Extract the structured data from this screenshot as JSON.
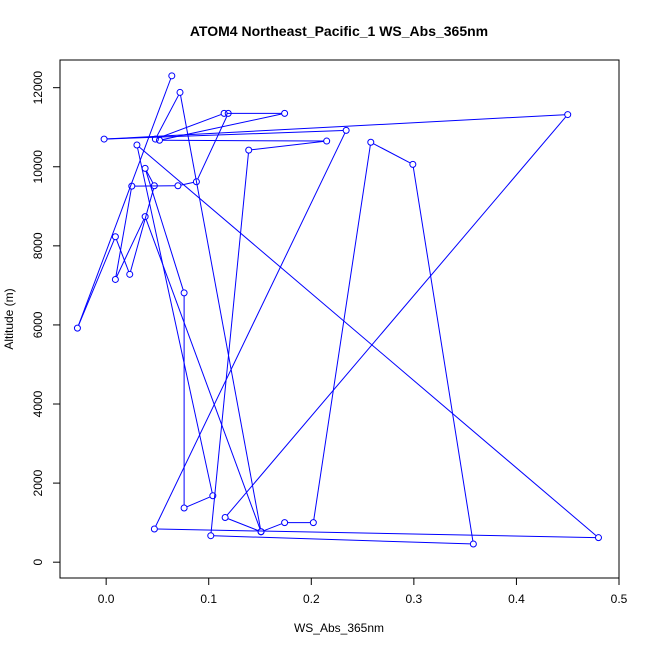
{
  "chart_data": {
    "type": "line",
    "title": "ATOM4 Northeast_Pacific_1 WS_Abs_365nm",
    "xlabel": "WS_Abs_365nm",
    "ylabel": "Altitude (m)",
    "xlim": [
      -0.045,
      0.5
    ],
    "ylim": [
      -400,
      12700
    ],
    "x_ticks": [
      0.0,
      0.1,
      0.2,
      0.3,
      0.4,
      0.5
    ],
    "x_tick_labels": [
      "0.0",
      "0.1",
      "0.2",
      "0.3",
      "0.4",
      "0.5"
    ],
    "y_ticks": [
      0,
      2000,
      4000,
      6000,
      8000,
      10000,
      12000
    ],
    "y_tick_labels": [
      "0",
      "2000",
      "4000",
      "6000",
      "8000",
      "10000",
      "12000"
    ],
    "grid": false,
    "series": [
      {
        "color": "#0000ff",
        "marker": "open-circle",
        "points": [
          {
            "x": 0.064,
            "y": 12300
          },
          {
            "x": -0.028,
            "y": 5920
          },
          {
            "x": 0.009,
            "y": 8230
          },
          {
            "x": 0.023,
            "y": 7280
          },
          {
            "x": 0.047,
            "y": 9520
          },
          {
            "x": 0.038,
            "y": 9960
          },
          {
            "x": 0.076,
            "y": 6810
          },
          {
            "x": 0.076,
            "y": 1370
          },
          {
            "x": 0.104,
            "y": 1680
          },
          {
            "x": 0.03,
            "y": 10550
          },
          {
            "x": 0.48,
            "y": 620
          },
          {
            "x": 0.047,
            "y": 840
          },
          {
            "x": 0.234,
            "y": 10920
          },
          {
            "x": -0.002,
            "y": 10700
          },
          {
            "x": 0.45,
            "y": 11320
          },
          {
            "x": 0.116,
            "y": 1130
          },
          {
            "x": 0.151,
            "y": 770
          },
          {
            "x": 0.174,
            "y": 1000
          },
          {
            "x": 0.202,
            "y": 1000
          },
          {
            "x": 0.258,
            "y": 10620
          },
          {
            "x": 0.299,
            "y": 10060
          },
          {
            "x": 0.358,
            "y": 460
          },
          {
            "x": 0.102,
            "y": 670
          },
          {
            "x": 0.139,
            "y": 10420
          },
          {
            "x": 0.215,
            "y": 10650
          },
          {
            "x": 0.052,
            "y": 10670
          },
          {
            "x": 0.174,
            "y": 11350
          },
          {
            "x": 0.115,
            "y": 11350
          },
          {
            "x": 0.048,
            "y": 10700
          },
          {
            "x": 0.072,
            "y": 11880
          },
          {
            "x": 0.151,
            "y": 770
          },
          {
            "x": 0.038,
            "y": 8740
          },
          {
            "x": 0.009,
            "y": 7150
          },
          {
            "x": 0.025,
            "y": 9510
          },
          {
            "x": 0.07,
            "y": 9520
          },
          {
            "x": 0.088,
            "y": 9620
          },
          {
            "x": 0.119,
            "y": 11350
          }
        ]
      }
    ]
  }
}
